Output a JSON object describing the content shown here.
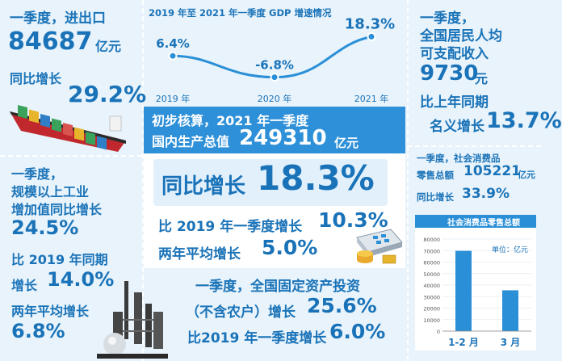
{
  "trade": {
    "title": "一季度，进出口",
    "value": "84687",
    "unit": "亿元",
    "growth_label": "同比增长",
    "growth_value": "29.2%"
  },
  "gdp_chart": {
    "title": "2019 年至 2021 年一季度 GDP 增速情况"
  },
  "chart_data": {
    "type": "line",
    "title": "2019 年至 2021 年一季度 GDP 增速情况",
    "categories": [
      "2019 年",
      "2020 年",
      "2021 年"
    ],
    "values": [
      6.4,
      -6.8,
      18.3
    ],
    "value_labels": [
      "6.4%",
      "-6.8%",
      "18.3%"
    ]
  },
  "income": {
    "line1": "一季度，",
    "line2": "全国居民人均",
    "line3": "可支配收入",
    "value": "9730",
    "unit": "元",
    "line4": "比上年同期",
    "line5": "名义增长",
    "growth": "13.7%"
  },
  "gdp_main": {
    "line1": "初步核算，2021 年一季度",
    "line2": "国内生产总值",
    "value": "249310",
    "unit": "亿元",
    "yoy_label": "同比增长",
    "yoy_value": "18.3%",
    "vs2019_label": "比 2019 年一季度增长",
    "vs2019_value": "10.3%",
    "avg_label": "两年平均增长",
    "avg_value": "5.0%"
  },
  "retail": {
    "line1": "一季度，社会消费品",
    "line2": "零售总额",
    "value": "105221",
    "unit": "亿元",
    "growth_label": "同比增长",
    "growth_value": "33.9%",
    "chart_title": "社会消费品零售总额",
    "chart_unit": "单位：亿元",
    "yticks": [
      "80000",
      "70000",
      "60000",
      "50000",
      "40000",
      "30000",
      "20000",
      "10000",
      "0"
    ],
    "bars": [
      {
        "label": "1-2 月",
        "value": 69737
      },
      {
        "label": "3 月",
        "value": 35484
      }
    ],
    "ymax": 80000
  },
  "industry": {
    "line1": "一季度，",
    "line2": "规模以上工业",
    "line3": "增加值同比增长",
    "growth": "24.5%",
    "line4": "比 2019 年同期",
    "line5": "增长",
    "growth2": "14.0%",
    "line6": "两年平均增长",
    "avg": "6.8%"
  },
  "investment": {
    "line1": "一季度，全国固定资产投资",
    "line2": "（不含农户）增长",
    "growth": "25.6%",
    "line3": "比2019 年一季度增长",
    "growth2": "6.0%"
  }
}
